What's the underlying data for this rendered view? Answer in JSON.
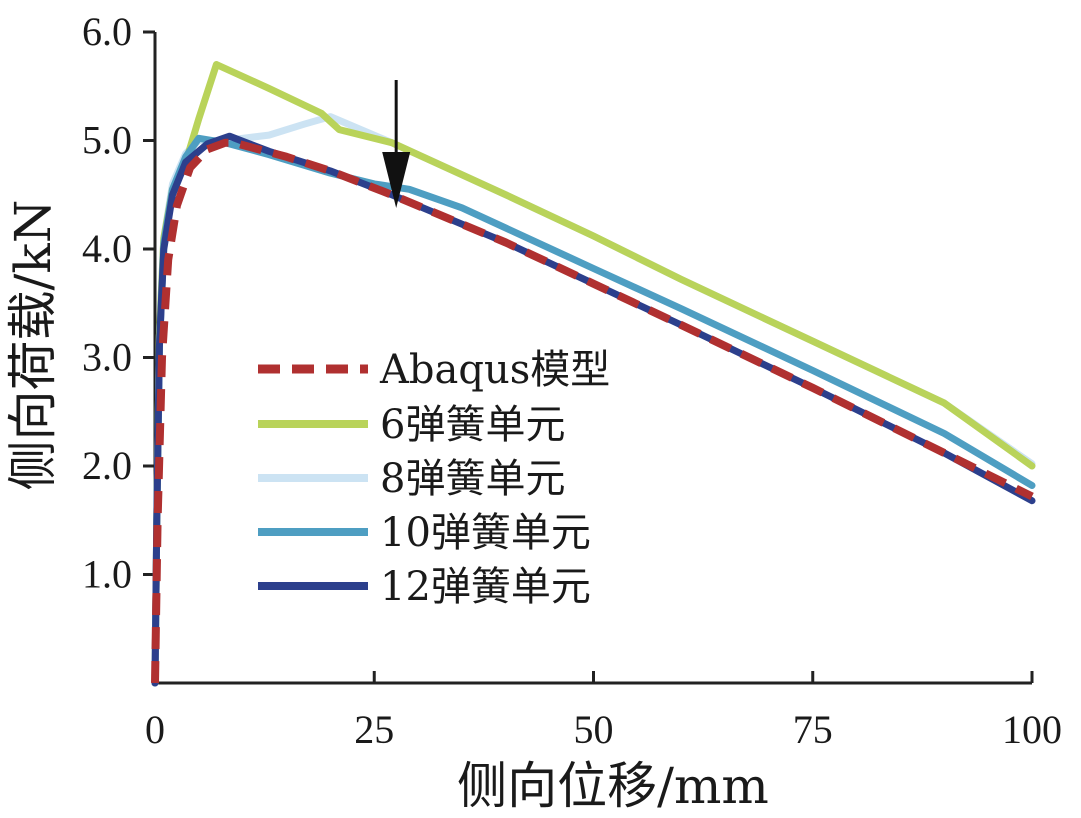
{
  "chart_data": {
    "type": "line",
    "title": "",
    "xlabel": "侧向位移/mm",
    "ylabel": "侧向荷载/kN",
    "xlim": [
      0,
      100
    ],
    "ylim": [
      0,
      6
    ],
    "x_ticks": [
      0,
      25,
      50,
      75,
      100
    ],
    "y_ticks": [
      1,
      2,
      3,
      4,
      5,
      6
    ],
    "x_tick_labels": [
      "0",
      "25",
      "50",
      "75",
      "100"
    ],
    "y_tick_labels": [
      "1.0",
      "2.0",
      "3.0",
      "4.0",
      "5.0",
      "6.0"
    ],
    "grid": false,
    "legend_position": "center-left",
    "annotation": "downward arrow marking ~27 mm on the curves",
    "series": [
      {
        "name": "Abaqus模型",
        "color": "#b03030",
        "dash": "dashed",
        "x": [
          0,
          0.3,
          0.8,
          1.5,
          2.5,
          4,
          6,
          8,
          9,
          15,
          20,
          27,
          40,
          50,
          60,
          75,
          90,
          100
        ],
        "y": [
          0,
          1.5,
          3.0,
          3.9,
          4.4,
          4.75,
          4.92,
          4.98,
          4.98,
          4.85,
          4.72,
          4.5,
          4.06,
          3.68,
          3.3,
          2.72,
          2.12,
          1.72
        ]
      },
      {
        "name": "6弹簧单元",
        "color": "#b9d35a",
        "dash": "solid",
        "x": [
          0,
          0.2,
          0.5,
          1,
          2,
          3.5,
          5,
          7,
          13,
          19,
          21,
          27,
          40,
          50,
          60,
          75,
          90,
          100
        ],
        "y": [
          0,
          1.5,
          3.2,
          4.1,
          4.55,
          4.8,
          5.2,
          5.7,
          5.48,
          5.25,
          5.1,
          4.98,
          4.5,
          4.12,
          3.72,
          3.15,
          2.58,
          2.0
        ]
      },
      {
        "name": "8弹簧单元",
        "color": "#cce3f3",
        "dash": "solid",
        "x": [
          0,
          0.2,
          0.5,
          1,
          2,
          3.5,
          5,
          8,
          13,
          17,
          20,
          27,
          40,
          50,
          60,
          75,
          90,
          100
        ],
        "y": [
          0,
          1.5,
          3.2,
          4.1,
          4.6,
          4.88,
          5.0,
          5.0,
          5.05,
          5.15,
          5.22,
          4.98,
          4.5,
          4.12,
          3.72,
          3.15,
          2.58,
          2.02
        ]
      },
      {
        "name": "10弹簧单元",
        "color": "#4e9ec2",
        "dash": "solid",
        "x": [
          0,
          0.2,
          0.5,
          1,
          2,
          3.5,
          5,
          8,
          13,
          20,
          25,
          29,
          35,
          50,
          60,
          75,
          90,
          100
        ],
        "y": [
          0,
          1.5,
          3.1,
          4.05,
          4.55,
          4.85,
          5.02,
          4.98,
          4.87,
          4.7,
          4.6,
          4.55,
          4.38,
          3.82,
          3.45,
          2.88,
          2.3,
          1.82
        ]
      },
      {
        "name": "12弹簧单元",
        "color": "#2c3f8c",
        "dash": "solid",
        "x": [
          0,
          0.2,
          0.5,
          1,
          2,
          3.5,
          6,
          8.5,
          13,
          20,
          27,
          40,
          50,
          60,
          75,
          90,
          100
        ],
        "y": [
          0,
          1.5,
          3.1,
          4.0,
          4.5,
          4.8,
          4.97,
          5.04,
          4.9,
          4.72,
          4.5,
          4.06,
          3.68,
          3.3,
          2.72,
          2.12,
          1.68
        ]
      }
    ]
  }
}
